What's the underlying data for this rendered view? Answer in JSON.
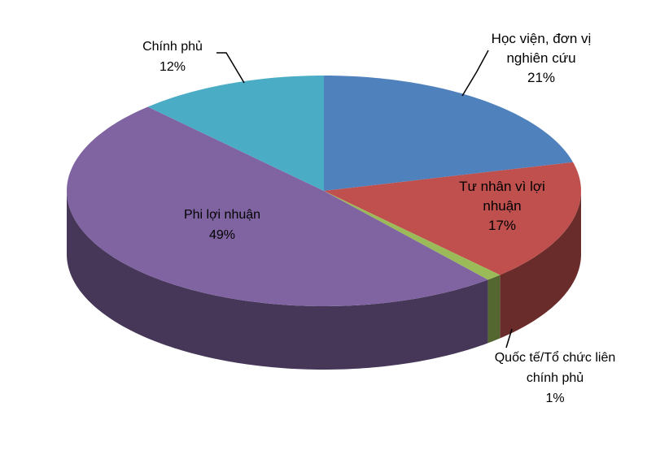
{
  "chart_data": {
    "type": "pie3d",
    "categories": [
      "Học viện, đơn vị nghiên cứu",
      "Tư nhân vì lợi nhuận",
      "Quốc tế/Tổ chức liên chính phủ",
      "Phi lợi nhuận",
      "Chính phủ"
    ],
    "values": [
      21,
      17,
      1,
      49,
      12
    ],
    "value_labels": [
      "21%",
      "17%",
      "1%",
      "49%",
      "12%"
    ],
    "colors": [
      "#4f81bd",
      "#c0504d",
      "#9bbb59",
      "#8064a2",
      "#4bacc6"
    ]
  }
}
